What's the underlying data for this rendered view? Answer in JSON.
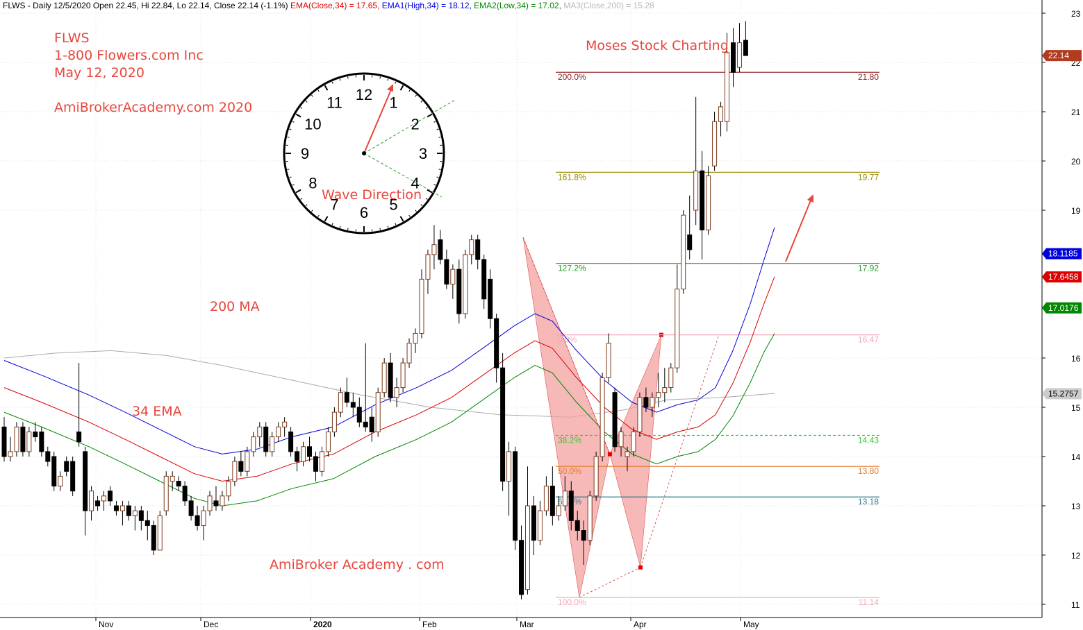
{
  "header": {
    "prefix": "FLWS - Daily 12/5/2020 Open 22.45, Hi 22.84, Lo 22.14, Close 22.14 (-1.1%) ",
    "ema_close": "EMA(Close,34) = 17.65,",
    "ema_high": " EMA1(High,34) = 18.12,",
    "ema_low": " EMA2(Low,34) = 17.02,",
    "ma200": " MA3(Close,200) = 15.28"
  },
  "annotations": {
    "ticker": "FLWS",
    "company": "1-800 Flowers.com Inc",
    "date": "May 12, 2020",
    "site_year": "AmiBrokerAcademy.com   2020",
    "moses": "Moses Stock Charting",
    "wave": "Wave Direction",
    "ma200": "200 MA",
    "ema34": "34 EMA",
    "footer": "AmiBroker Academy . com"
  },
  "colors": {
    "annotation": "#e8463c",
    "ema_close": "#dd0000",
    "ema_high": "#0000dd",
    "ema_low": "#008800",
    "ma200": "#aaaaaa",
    "up_candle": "#ffffff",
    "down_candle": "#000000",
    "pattern_fill": "#f4a0a0"
  },
  "clock": {
    "numbers": [
      "12",
      "1",
      "2",
      "3",
      "4",
      "5",
      "6",
      "7",
      "8",
      "9",
      "10",
      "11"
    ]
  },
  "chart_data": {
    "type": "candlestick",
    "title": "FLWS - Daily",
    "x_labels": [
      "Nov",
      "Dec",
      "2020",
      "Feb",
      "Mar",
      "Apr",
      "May"
    ],
    "y_ticks": [
      11,
      12,
      13,
      14,
      15,
      16,
      19,
      20,
      21,
      22,
      23
    ],
    "ylim": [
      10.8,
      23.1
    ],
    "grid": true,
    "value_tags": [
      {
        "value": 22.14,
        "label": "22.14",
        "color": "#b23a1e"
      },
      {
        "value": 18.1185,
        "label": "18.1185",
        "color": "#0000dd"
      },
      {
        "value": 17.6458,
        "label": "17.6458",
        "color": "#dd0000"
      },
      {
        "value": 17.0176,
        "label": "17.0176",
        "color": "#008800"
      },
      {
        "value": 15.2757,
        "label": "15.2757",
        "color": "#cccccc"
      }
    ],
    "fib_levels": [
      {
        "pct": "200.0%",
        "value": 21.8,
        "label": "21.80",
        "color": "#8b1a1a",
        "dashed": false
      },
      {
        "pct": "161.8%",
        "value": 19.77,
        "label": "19.77",
        "color": "#9a8a00",
        "dashed": false
      },
      {
        "pct": "127.2%",
        "value": 17.92,
        "label": "17.92",
        "color": "#2e9a2e",
        "dashed": false
      },
      {
        "pct": "0.0%",
        "value": 16.47,
        "label": "16.47",
        "color": "#f4a6b6",
        "dashed": false
      },
      {
        "pct": "38.2%",
        "value": 14.43,
        "label": "14.43",
        "color": "#33cc33",
        "dashed": true
      },
      {
        "pct": "50.0%",
        "value": 13.8,
        "label": "13.80",
        "color": "#e0792a",
        "dashed": false
      },
      {
        "pct": "61.8%",
        "value": 13.18,
        "label": "13.18",
        "color": "#2e7a8a",
        "dashed": false
      },
      {
        "pct": "100.0%",
        "value": 11.14,
        "label": "11.14",
        "color": "#f4a6b6",
        "dashed": false
      }
    ],
    "candles": [
      {
        "o": 14.6,
        "h": 14.8,
        "l": 13.9,
        "c": 14.0
      },
      {
        "o": 14.0,
        "h": 14.4,
        "l": 13.9,
        "c": 14.1
      },
      {
        "o": 14.1,
        "h": 14.7,
        "l": 14.0,
        "c": 14.6
      },
      {
        "o": 14.6,
        "h": 14.7,
        "l": 14.0,
        "c": 14.1
      },
      {
        "o": 14.1,
        "h": 14.6,
        "l": 14.0,
        "c": 14.5
      },
      {
        "o": 14.5,
        "h": 14.7,
        "l": 14.3,
        "c": 14.4
      },
      {
        "o": 14.5,
        "h": 14.6,
        "l": 14.0,
        "c": 14.1
      },
      {
        "o": 14.1,
        "h": 14.2,
        "l": 13.8,
        "c": 13.9
      },
      {
        "o": 14.0,
        "h": 14.1,
        "l": 13.3,
        "c": 13.4
      },
      {
        "o": 13.4,
        "h": 13.7,
        "l": 13.3,
        "c": 13.6
      },
      {
        "o": 13.9,
        "h": 14.0,
        "l": 13.6,
        "c": 13.7
      },
      {
        "o": 13.9,
        "h": 14.0,
        "l": 13.2,
        "c": 13.3
      },
      {
        "o": 14.5,
        "h": 15.9,
        "l": 14.2,
        "c": 14.3
      },
      {
        "o": 14.1,
        "h": 14.2,
        "l": 12.4,
        "c": 12.9
      },
      {
        "o": 12.9,
        "h": 13.4,
        "l": 12.7,
        "c": 13.3
      },
      {
        "o": 13.1,
        "h": 13.2,
        "l": 12.9,
        "c": 13.0
      },
      {
        "o": 13.1,
        "h": 13.3,
        "l": 12.9,
        "c": 13.2
      },
      {
        "o": 13.3,
        "h": 13.4,
        "l": 13.0,
        "c": 13.1
      },
      {
        "o": 13.0,
        "h": 13.1,
        "l": 12.8,
        "c": 12.9
      },
      {
        "o": 12.9,
        "h": 13.1,
        "l": 12.6,
        "c": 13.0
      },
      {
        "o": 13.0,
        "h": 13.1,
        "l": 12.7,
        "c": 12.8
      },
      {
        "o": 12.8,
        "h": 13.0,
        "l": 12.5,
        "c": 12.9
      },
      {
        "o": 12.9,
        "h": 13.0,
        "l": 12.5,
        "c": 12.7
      },
      {
        "o": 12.7,
        "h": 12.9,
        "l": 12.3,
        "c": 12.6
      },
      {
        "o": 12.6,
        "h": 12.7,
        "l": 12.0,
        "c": 12.1
      },
      {
        "o": 12.1,
        "h": 12.9,
        "l": 12.1,
        "c": 12.8
      },
      {
        "o": 12.9,
        "h": 13.7,
        "l": 12.8,
        "c": 13.6
      },
      {
        "o": 13.5,
        "h": 13.7,
        "l": 13.3,
        "c": 13.6
      },
      {
        "o": 13.5,
        "h": 13.6,
        "l": 13.3,
        "c": 13.4
      },
      {
        "o": 13.4,
        "h": 13.5,
        "l": 13.0,
        "c": 13.1
      },
      {
        "o": 13.1,
        "h": 13.2,
        "l": 12.7,
        "c": 12.8
      },
      {
        "o": 12.8,
        "h": 13.0,
        "l": 12.5,
        "c": 12.6
      },
      {
        "o": 12.6,
        "h": 13.0,
        "l": 12.3,
        "c": 12.9
      },
      {
        "o": 12.9,
        "h": 13.3,
        "l": 12.8,
        "c": 13.2
      },
      {
        "o": 13.1,
        "h": 13.4,
        "l": 12.9,
        "c": 13.0
      },
      {
        "o": 13.0,
        "h": 13.3,
        "l": 12.9,
        "c": 13.2
      },
      {
        "o": 13.2,
        "h": 13.6,
        "l": 13.1,
        "c": 13.5
      },
      {
        "o": 13.5,
        "h": 14.0,
        "l": 13.4,
        "c": 13.9
      },
      {
        "o": 13.9,
        "h": 14.1,
        "l": 13.6,
        "c": 13.7
      },
      {
        "o": 13.7,
        "h": 14.2,
        "l": 13.6,
        "c": 14.1
      },
      {
        "o": 14.1,
        "h": 14.5,
        "l": 14.0,
        "c": 14.4
      },
      {
        "o": 14.4,
        "h": 14.7,
        "l": 14.2,
        "c": 14.6
      },
      {
        "o": 14.6,
        "h": 14.7,
        "l": 14.0,
        "c": 14.1
      },
      {
        "o": 14.1,
        "h": 14.5,
        "l": 14.0,
        "c": 14.4
      },
      {
        "o": 14.4,
        "h": 14.7,
        "l": 14.3,
        "c": 14.6
      },
      {
        "o": 14.6,
        "h": 14.8,
        "l": 14.4,
        "c": 14.7
      },
      {
        "o": 14.5,
        "h": 14.6,
        "l": 14.0,
        "c": 14.1
      },
      {
        "o": 14.1,
        "h": 14.2,
        "l": 13.7,
        "c": 13.9
      },
      {
        "o": 13.9,
        "h": 14.3,
        "l": 13.8,
        "c": 14.2
      },
      {
        "o": 14.2,
        "h": 14.4,
        "l": 13.9,
        "c": 14.0
      },
      {
        "o": 14.0,
        "h": 14.1,
        "l": 13.5,
        "c": 13.7
      },
      {
        "o": 13.7,
        "h": 14.2,
        "l": 13.6,
        "c": 14.1
      },
      {
        "o": 14.1,
        "h": 14.6,
        "l": 14.0,
        "c": 14.5
      },
      {
        "o": 14.5,
        "h": 15.0,
        "l": 14.4,
        "c": 14.9
      },
      {
        "o": 14.9,
        "h": 15.4,
        "l": 14.8,
        "c": 15.3
      },
      {
        "o": 15.3,
        "h": 15.6,
        "l": 15.0,
        "c": 15.1
      },
      {
        "o": 15.1,
        "h": 15.3,
        "l": 14.8,
        "c": 15.0
      },
      {
        "o": 15.0,
        "h": 15.2,
        "l": 14.6,
        "c": 14.7
      },
      {
        "o": 14.7,
        "h": 16.3,
        "l": 14.5,
        "c": 14.6
      },
      {
        "o": 14.8,
        "h": 15.0,
        "l": 14.3,
        "c": 14.5
      },
      {
        "o": 14.5,
        "h": 15.4,
        "l": 14.4,
        "c": 15.3
      },
      {
        "o": 15.3,
        "h": 16.0,
        "l": 15.2,
        "c": 15.9
      },
      {
        "o": 15.9,
        "h": 16.1,
        "l": 15.1,
        "c": 15.2
      },
      {
        "o": 15.2,
        "h": 15.6,
        "l": 15.0,
        "c": 15.4
      },
      {
        "o": 15.4,
        "h": 16.0,
        "l": 15.3,
        "c": 15.9
      },
      {
        "o": 15.9,
        "h": 16.4,
        "l": 15.8,
        "c": 16.3
      },
      {
        "o": 16.3,
        "h": 16.6,
        "l": 16.1,
        "c": 16.5
      },
      {
        "o": 16.5,
        "h": 17.8,
        "l": 16.4,
        "c": 17.6
      },
      {
        "o": 17.6,
        "h": 18.2,
        "l": 17.3,
        "c": 18.1
      },
      {
        "o": 18.1,
        "h": 18.7,
        "l": 17.8,
        "c": 18.3
      },
      {
        "o": 18.4,
        "h": 18.6,
        "l": 17.9,
        "c": 18.0
      },
      {
        "o": 18.0,
        "h": 18.2,
        "l": 17.4,
        "c": 17.5
      },
      {
        "o": 17.5,
        "h": 17.9,
        "l": 17.2,
        "c": 17.8
      },
      {
        "o": 17.8,
        "h": 18.0,
        "l": 16.7,
        "c": 16.9
      },
      {
        "o": 16.9,
        "h": 18.2,
        "l": 16.8,
        "c": 18.1
      },
      {
        "o": 18.1,
        "h": 18.5,
        "l": 17.9,
        "c": 18.4
      },
      {
        "o": 18.4,
        "h": 18.5,
        "l": 17.8,
        "c": 18.0
      },
      {
        "o": 18.0,
        "h": 18.1,
        "l": 17.0,
        "c": 17.2
      },
      {
        "o": 17.6,
        "h": 17.8,
        "l": 16.6,
        "c": 16.8
      },
      {
        "o": 16.8,
        "h": 16.9,
        "l": 15.5,
        "c": 15.8
      },
      {
        "o": 15.8,
        "h": 16.1,
        "l": 13.3,
        "c": 13.5
      },
      {
        "o": 13.5,
        "h": 14.3,
        "l": 12.8,
        "c": 14.1
      },
      {
        "o": 14.1,
        "h": 14.2,
        "l": 12.1,
        "c": 12.3
      },
      {
        "o": 12.3,
        "h": 12.6,
        "l": 11.1,
        "c": 11.2
      },
      {
        "o": 11.3,
        "h": 13.8,
        "l": 11.2,
        "c": 13.0
      },
      {
        "o": 13.0,
        "h": 13.2,
        "l": 12.0,
        "c": 12.3
      },
      {
        "o": 12.3,
        "h": 13.1,
        "l": 12.2,
        "c": 12.9
      },
      {
        "o": 12.9,
        "h": 13.6,
        "l": 12.8,
        "c": 13.4
      },
      {
        "o": 13.4,
        "h": 13.8,
        "l": 12.6,
        "c": 12.8
      },
      {
        "o": 12.8,
        "h": 13.2,
        "l": 12.7,
        "c": 13.0
      },
      {
        "o": 13.0,
        "h": 13.6,
        "l": 12.9,
        "c": 13.3
      },
      {
        "o": 13.3,
        "h": 13.5,
        "l": 12.5,
        "c": 12.7
      },
      {
        "o": 12.7,
        "h": 12.9,
        "l": 12.3,
        "c": 12.5
      },
      {
        "o": 12.5,
        "h": 12.7,
        "l": 11.8,
        "c": 12.3
      },
      {
        "o": 12.3,
        "h": 13.3,
        "l": 12.2,
        "c": 13.2
      },
      {
        "o": 13.2,
        "h": 14.1,
        "l": 13.1,
        "c": 14.0
      },
      {
        "o": 14.0,
        "h": 15.7,
        "l": 13.9,
        "c": 15.6
      },
      {
        "o": 15.6,
        "h": 16.5,
        "l": 15.5,
        "c": 16.3
      },
      {
        "o": 15.3,
        "h": 15.4,
        "l": 14.1,
        "c": 14.2
      },
      {
        "o": 14.2,
        "h": 14.6,
        "l": 14.0,
        "c": 14.5
      },
      {
        "o": 14.0,
        "h": 14.2,
        "l": 13.7,
        "c": 14.1
      },
      {
        "o": 14.1,
        "h": 14.6,
        "l": 14.0,
        "c": 14.5
      },
      {
        "o": 14.5,
        "h": 15.3,
        "l": 14.4,
        "c": 15.2
      },
      {
        "o": 15.2,
        "h": 15.4,
        "l": 14.9,
        "c": 15.0
      },
      {
        "o": 15.0,
        "h": 15.3,
        "l": 14.8,
        "c": 15.2
      },
      {
        "o": 15.2,
        "h": 15.7,
        "l": 15.0,
        "c": 15.3
      },
      {
        "o": 15.3,
        "h": 15.8,
        "l": 15.1,
        "c": 15.4
      },
      {
        "o": 15.4,
        "h": 15.9,
        "l": 15.3,
        "c": 15.8
      },
      {
        "o": 15.8,
        "h": 17.9,
        "l": 15.7,
        "c": 17.4
      },
      {
        "o": 17.4,
        "h": 19.0,
        "l": 17.3,
        "c": 18.9
      },
      {
        "o": 18.5,
        "h": 19.3,
        "l": 18.0,
        "c": 18.2
      },
      {
        "o": 19.0,
        "h": 21.3,
        "l": 18.7,
        "c": 19.8
      },
      {
        "o": 19.8,
        "h": 20.2,
        "l": 18.0,
        "c": 18.6
      },
      {
        "o": 18.6,
        "h": 19.9,
        "l": 18.5,
        "c": 19.7
      },
      {
        "o": 19.9,
        "h": 21.0,
        "l": 19.8,
        "c": 20.8
      },
      {
        "o": 20.8,
        "h": 21.2,
        "l": 20.5,
        "c": 21.1
      },
      {
        "o": 20.8,
        "h": 22.6,
        "l": 20.6,
        "c": 22.2
      },
      {
        "o": 22.4,
        "h": 22.7,
        "l": 21.5,
        "c": 21.8
      },
      {
        "o": 21.9,
        "h": 22.8,
        "l": 21.8,
        "c": 22.4
      },
      {
        "o": 22.45,
        "h": 22.84,
        "l": 22.14,
        "c": 22.14
      }
    ]
  }
}
